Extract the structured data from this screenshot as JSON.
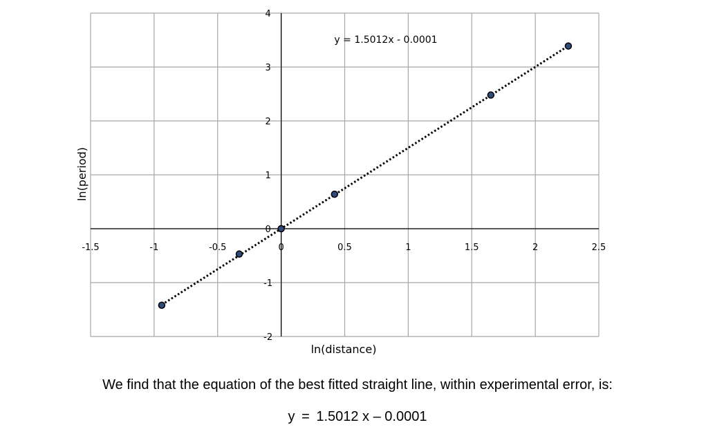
{
  "chart_data": {
    "type": "scatter",
    "xlabel": "ln(distance)",
    "ylabel": "ln(period)",
    "xlim": [
      -1.5,
      2.5
    ],
    "ylim": [
      -2,
      4
    ],
    "x_ticks": [
      "-1.5",
      "-1",
      "-0.5",
      "0",
      "0.5",
      "1",
      "1.5",
      "2",
      "2.5"
    ],
    "y_ticks": [
      "-2",
      "-1",
      "0",
      "1",
      "2",
      "3",
      "4"
    ],
    "x_tick_values": [
      -1.5,
      -1,
      -0.5,
      0,
      0.5,
      1,
      1.5,
      2,
      2.5
    ],
    "y_tick_values": [
      -2,
      -1,
      0,
      1,
      2,
      3,
      4
    ],
    "grid": true,
    "points": [
      {
        "x": -0.94,
        "y": -1.42
      },
      {
        "x": -0.33,
        "y": -0.47
      },
      {
        "x": 0.0,
        "y": 0.0
      },
      {
        "x": 0.42,
        "y": 0.64
      },
      {
        "x": 1.65,
        "y": 2.48
      },
      {
        "x": 2.26,
        "y": 3.39
      }
    ],
    "trendline": {
      "style": "dotted",
      "slope": 1.5012,
      "intercept": -0.0001,
      "x_range": [
        -0.94,
        2.26
      ],
      "equation_label": "y = 1.5012x - 0.0001"
    },
    "colors": {
      "point_fill": "#2f4a78",
      "point_stroke": "#000000",
      "grid": "#a6a6a6",
      "trendline": "#000000"
    }
  },
  "text": {
    "caption_line": "We find that the equation of the best fitted straight line, within experimental error, is:",
    "equation_parts": [
      "y",
      "=",
      "1.5012 x – 0.0001"
    ]
  }
}
